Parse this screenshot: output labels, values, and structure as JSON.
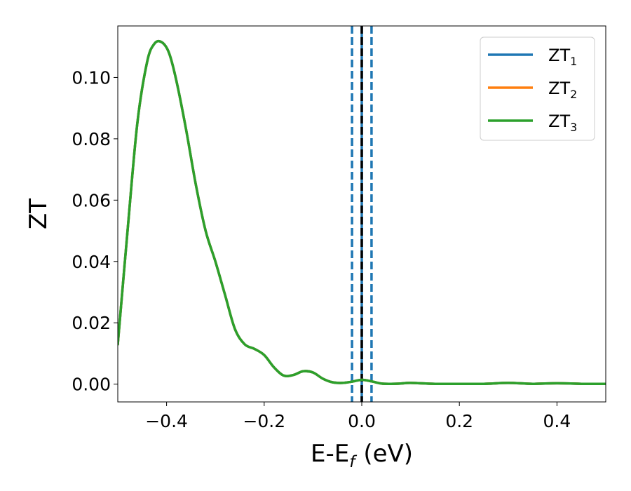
{
  "chart_data": {
    "type": "line",
    "xlabel": "E-E",
    "xlabel_sub": "f",
    "xlabel_unit": "(eV)",
    "ylabel": "ZT",
    "xlim": [
      -0.5,
      0.5
    ],
    "ylim": [
      -0.0058,
      0.1168
    ],
    "x_ticks": [
      -0.4,
      -0.2,
      0.0,
      0.2,
      0.4
    ],
    "x_tick_labels": [
      "−0.4",
      "−0.2",
      "0.0",
      "0.2",
      "0.4"
    ],
    "y_ticks": [
      0.0,
      0.02,
      0.04,
      0.06,
      0.08,
      0.1
    ],
    "y_tick_labels": [
      "0.00",
      "0.02",
      "0.04",
      "0.06",
      "0.08",
      "0.10"
    ],
    "grid": false,
    "legend_position": "top-right",
    "colors": {
      "ZT1": "#1f77b4",
      "ZT2": "#ff7f0e",
      "ZT3": "#2ca02c",
      "fermi_line": "#000000"
    },
    "series": [
      {
        "name": "ZT",
        "sub": "1",
        "color": "#1f77b4",
        "x": [
          -0.5,
          -0.48,
          -0.46,
          -0.44,
          -0.425,
          -0.41,
          -0.395,
          -0.38,
          -0.36,
          -0.34,
          -0.32,
          -0.3,
          -0.28,
          -0.26,
          -0.24,
          -0.22,
          -0.2,
          -0.18,
          -0.16,
          -0.14,
          -0.12,
          -0.1,
          -0.08,
          -0.06,
          -0.04,
          -0.02,
          0.0,
          0.02,
          0.04,
          0.06,
          0.08,
          0.1,
          0.15,
          0.2,
          0.25,
          0.3,
          0.35,
          0.4,
          0.45,
          0.5
        ],
        "y": [
          0.013,
          0.05,
          0.085,
          0.105,
          0.111,
          0.1115,
          0.108,
          0.099,
          0.083,
          0.065,
          0.05,
          0.04,
          0.029,
          0.018,
          0.013,
          0.0115,
          0.0095,
          0.0055,
          0.0028,
          0.003,
          0.0042,
          0.0038,
          0.0018,
          0.0006,
          0.0004,
          0.0008,
          0.0014,
          0.0009,
          0.0002,
          0.0001,
          0.0002,
          0.0004,
          0.0001,
          0.0001,
          0.0001,
          0.0004,
          0.0001,
          0.0003,
          0.0001,
          0.0001
        ]
      },
      {
        "name": "ZT",
        "sub": "2",
        "color": "#ff7f0e",
        "x": [
          -0.5,
          -0.48,
          -0.46,
          -0.44,
          -0.425,
          -0.41,
          -0.395,
          -0.38,
          -0.36,
          -0.34,
          -0.32,
          -0.3,
          -0.28,
          -0.26,
          -0.24,
          -0.22,
          -0.2,
          -0.18,
          -0.16,
          -0.14,
          -0.12,
          -0.1,
          -0.08,
          -0.06,
          -0.04,
          -0.02,
          0.0,
          0.02,
          0.04,
          0.06,
          0.08,
          0.1,
          0.15,
          0.2,
          0.25,
          0.3,
          0.35,
          0.4,
          0.45,
          0.5
        ],
        "y": [
          0.013,
          0.05,
          0.085,
          0.105,
          0.111,
          0.1115,
          0.108,
          0.099,
          0.083,
          0.065,
          0.05,
          0.04,
          0.029,
          0.018,
          0.013,
          0.0115,
          0.0095,
          0.0055,
          0.0028,
          0.003,
          0.0042,
          0.0038,
          0.0018,
          0.0006,
          0.0004,
          0.0008,
          0.0014,
          0.0009,
          0.0002,
          0.0001,
          0.0002,
          0.0004,
          0.0001,
          0.0001,
          0.0001,
          0.0004,
          0.0001,
          0.0003,
          0.0001,
          0.0001
        ]
      },
      {
        "name": "ZT",
        "sub": "3",
        "color": "#2ca02c",
        "x": [
          -0.5,
          -0.48,
          -0.46,
          -0.44,
          -0.425,
          -0.41,
          -0.395,
          -0.38,
          -0.36,
          -0.34,
          -0.32,
          -0.3,
          -0.28,
          -0.26,
          -0.24,
          -0.22,
          -0.2,
          -0.18,
          -0.16,
          -0.14,
          -0.12,
          -0.1,
          -0.08,
          -0.06,
          -0.04,
          -0.02,
          0.0,
          0.02,
          0.04,
          0.06,
          0.08,
          0.1,
          0.15,
          0.2,
          0.25,
          0.3,
          0.35,
          0.4,
          0.45,
          0.5
        ],
        "y": [
          0.013,
          0.05,
          0.085,
          0.105,
          0.111,
          0.1115,
          0.108,
          0.099,
          0.083,
          0.065,
          0.05,
          0.04,
          0.029,
          0.018,
          0.013,
          0.0115,
          0.0095,
          0.0055,
          0.0028,
          0.003,
          0.0042,
          0.0038,
          0.0018,
          0.0006,
          0.0004,
          0.0008,
          0.0014,
          0.0009,
          0.0002,
          0.0001,
          0.0002,
          0.0004,
          0.0001,
          0.0001,
          0.0001,
          0.0004,
          0.0001,
          0.0003,
          0.0001,
          0.0001
        ]
      }
    ],
    "vertical_lines": [
      {
        "x": -0.02,
        "style": "dashed",
        "color": "#1f77b4"
      },
      {
        "x": 0.02,
        "style": "dashed",
        "color": "#1f77b4"
      },
      {
        "x": 0.0,
        "style": "solid",
        "color": "#1f77b4"
      },
      {
        "x": 0.0,
        "style": "dashed",
        "color": "#000000"
      }
    ]
  }
}
